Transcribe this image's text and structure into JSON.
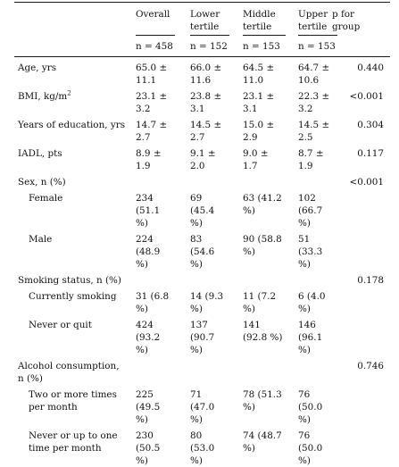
{
  "table": {
    "headers": {
      "overall": [
        "Overall"
      ],
      "lower": [
        "Lower",
        "tertile"
      ],
      "middle": [
        "Middle",
        "tertile"
      ],
      "upper": [
        "Upper",
        "tertile"
      ],
      "p": [
        "p for",
        "group"
      ]
    },
    "n_row": {
      "overall": "n = 458",
      "lower": "n = 152",
      "middle": "n = 153",
      "upper": "n = 153"
    },
    "rows": [
      {
        "label": [
          "Age, yrs"
        ],
        "overall": [
          "65.0 ±",
          "11.1"
        ],
        "lower": [
          "66.0 ±",
          "11.6"
        ],
        "middle": [
          "64.5 ±",
          "11.0"
        ],
        "upper": [
          "64.7 ±",
          "10.6"
        ],
        "p": "0.440"
      },
      {
        "label": [
          "BMI, kg/m"
        ],
        "label_sup": "2",
        "overall": [
          "23.1 ±",
          "3.2"
        ],
        "lower": [
          "23.8 ±",
          "3.1"
        ],
        "middle": [
          "23.1 ±",
          "3.1"
        ],
        "upper": [
          "22.3 ±",
          "3.2"
        ],
        "p": "<0.001"
      },
      {
        "label": [
          "Years of education, yrs"
        ],
        "overall": [
          "14.7 ±",
          "2.7"
        ],
        "lower": [
          "14.5 ±",
          "2.7"
        ],
        "middle": [
          "15.0 ±",
          "2.9"
        ],
        "upper": [
          "14.5 ±",
          "2.5"
        ],
        "p": "0.304"
      },
      {
        "label": [
          "IADL, pts"
        ],
        "overall": [
          "8.9 ±",
          "1.9"
        ],
        "lower": [
          "9.1 ±",
          "2.0"
        ],
        "middle": [
          "9.0 ±",
          "1.7"
        ],
        "upper": [
          "8.7 ±",
          "1.9"
        ],
        "p": "0.117"
      },
      {
        "label": [
          "Sex, n (%)"
        ],
        "p": "<0.001"
      },
      {
        "label": [
          "Female"
        ],
        "indent": true,
        "overall": [
          "234",
          "(51.1",
          "%)"
        ],
        "lower": [
          "69",
          "(45.4",
          "%)"
        ],
        "middle": [
          "63 (41.2",
          "%)"
        ],
        "upper": [
          "102",
          "(66.7",
          "%)"
        ]
      },
      {
        "label": [
          "Male"
        ],
        "indent": true,
        "overall": [
          "224",
          "(48.9",
          "%)"
        ],
        "lower": [
          "83",
          "(54.6",
          "%)"
        ],
        "middle": [
          "90 (58.8",
          "%)"
        ],
        "upper": [
          "51",
          "(33.3",
          "%)"
        ]
      },
      {
        "label": [
          "Smoking status, n (%)"
        ],
        "p": "0.178"
      },
      {
        "label": [
          "Currently smoking"
        ],
        "indent": true,
        "overall": [
          "31 (6.8",
          "%)"
        ],
        "lower": [
          "14 (9.3",
          "%)"
        ],
        "middle": [
          "11 (7.2",
          "%)"
        ],
        "upper": [
          "6 (4.0",
          "%)"
        ]
      },
      {
        "label": [
          "Never or quit"
        ],
        "indent": true,
        "overall": [
          "424",
          "(93.2",
          "%)"
        ],
        "lower": [
          "137",
          "(90.7",
          "%)"
        ],
        "middle": [
          "141",
          "(92.8 %)"
        ],
        "upper": [
          "146",
          "(96.1",
          "%)"
        ]
      },
      {
        "label": [
          "Alcohol consumption,",
          "n (%)"
        ],
        "p": "0.746"
      },
      {
        "label": [
          "Two or more times",
          "per month"
        ],
        "indent": true,
        "overall": [
          "225",
          "(49.5",
          "%)"
        ],
        "lower": [
          "71",
          "(47.0",
          "%)"
        ],
        "middle": [
          "78 (51.3",
          "%)"
        ],
        "upper": [
          "76",
          "(50.0",
          "%)"
        ]
      },
      {
        "label": [
          "Never or up to one",
          "time per month"
        ],
        "indent": true,
        "overall": [
          "230",
          "(50.5",
          "%)"
        ],
        "lower": [
          "80",
          "(53.0",
          "%)"
        ],
        "middle": [
          "74 (48.7",
          "%)"
        ],
        "upper": [
          "76",
          "(50.0",
          "%)"
        ]
      }
    ]
  }
}
